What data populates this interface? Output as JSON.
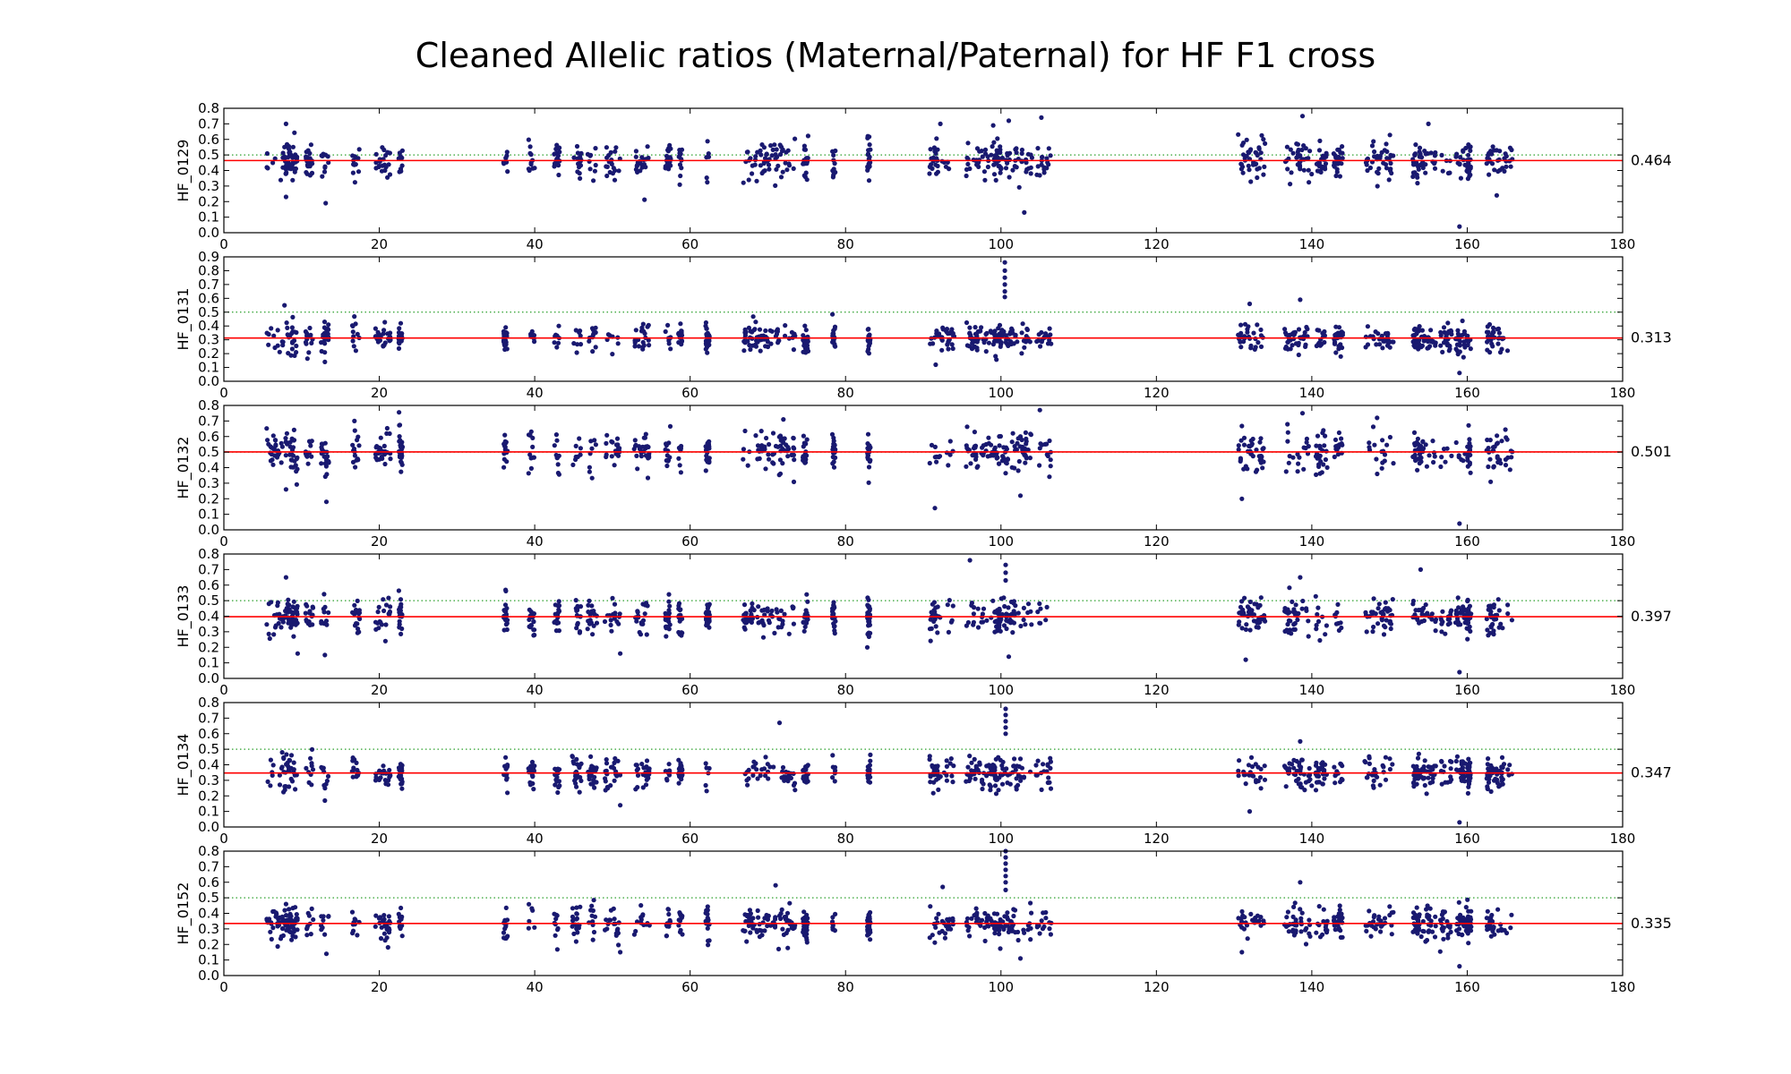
{
  "title": "Cleaned Allelic ratios (Maternal/Paternal) for HF F1 cross",
  "colors": {
    "points": "#191970",
    "mean_line": "#ff0000",
    "ref_line": "#2ca02c"
  },
  "chart_data": {
    "type": "scatter",
    "title": "Cleaned Allelic ratios (Maternal/Paternal) for HF F1 cross",
    "xlim": [
      0,
      180
    ],
    "xticks": [
      0,
      20,
      40,
      60,
      80,
      100,
      120,
      140,
      160,
      180
    ],
    "reference_line": 0.5,
    "marker_clusters": [
      [
        5.5,
        7.5
      ],
      [
        7.5,
        8.5
      ],
      [
        8.5,
        9.5
      ],
      [
        10.5,
        11.5
      ],
      [
        12.5,
        13.5
      ],
      [
        16.5,
        17.5
      ],
      [
        19.5,
        21.5
      ],
      [
        22.5,
        23
      ],
      [
        36,
        36.5
      ],
      [
        39.2,
        40
      ],
      [
        42.5,
        43.2
      ],
      [
        44.8,
        46
      ],
      [
        46.8,
        48
      ],
      [
        49,
        51
      ],
      [
        52.8,
        54.8
      ],
      [
        56.8,
        57.5
      ],
      [
        58.5,
        59
      ],
      [
        62,
        62.5
      ],
      [
        66.8,
        68.5
      ],
      [
        68.5,
        70
      ],
      [
        70,
        72
      ],
      [
        72,
        73.5
      ],
      [
        74.5,
        75.2
      ],
      [
        78.3,
        78.7
      ],
      [
        82.8,
        83.2
      ],
      [
        90.8,
        92
      ],
      [
        92,
        94
      ],
      [
        95.5,
        97
      ],
      [
        97,
        99
      ],
      [
        99,
        100
      ],
      [
        100,
        102
      ],
      [
        102,
        104
      ],
      [
        104.5,
        106.5
      ],
      [
        130.5,
        132
      ],
      [
        132,
        134
      ],
      [
        136.5,
        138
      ],
      [
        138,
        140
      ],
      [
        140.5,
        142
      ],
      [
        142.8,
        144
      ],
      [
        146.8,
        149
      ],
      [
        149,
        150.5
      ],
      [
        153,
        154
      ],
      [
        154,
        156
      ],
      [
        156.5,
        158
      ],
      [
        158.5,
        160
      ],
      [
        160,
        160.5
      ],
      [
        162.5,
        163.5
      ],
      [
        163.5,
        165.8
      ]
    ],
    "panels": [
      {
        "ylabel": "HF_0129",
        "mean": 0.464,
        "mean_label": "0.464",
        "ylim": [
          0,
          0.8
        ],
        "yticks": [
          "0.0",
          "0.1",
          "0.2",
          "0.3",
          "0.4",
          "0.5",
          "0.6",
          "0.7",
          "0.8"
        ],
        "spread": 0.06,
        "extremes": [
          [
            8,
            0.7
          ],
          [
            8,
            0.23
          ],
          [
            13.1,
            0.19
          ],
          [
            36,
            0.45
          ],
          [
            92.2,
            0.7
          ],
          [
            99,
            0.69
          ],
          [
            101,
            0.72
          ],
          [
            103,
            0.13
          ],
          [
            105.2,
            0.74
          ],
          [
            138.8,
            0.75
          ],
          [
            155,
            0.7
          ],
          [
            159,
            0.04
          ],
          [
            163.8,
            0.24
          ]
        ]
      },
      {
        "ylabel": "HF_0131",
        "mean": 0.313,
        "mean_label": "0.313",
        "ylim": [
          0,
          0.9
        ],
        "yticks": [
          "0.0",
          "0.1",
          "0.2",
          "0.3",
          "0.4",
          "0.5",
          "0.6",
          "0.7",
          "0.8",
          "0.9"
        ],
        "spread": 0.05,
        "extremes": [
          [
            7.8,
            0.55
          ],
          [
            13,
            0.14
          ],
          [
            91.6,
            0.12
          ],
          [
            100.5,
            0.86
          ],
          [
            100.5,
            0.8
          ],
          [
            100.5,
            0.75
          ],
          [
            100.5,
            0.7
          ],
          [
            100.5,
            0.65
          ],
          [
            100.5,
            0.61
          ],
          [
            132,
            0.56
          ],
          [
            138.5,
            0.59
          ],
          [
            159,
            0.06
          ]
        ]
      },
      {
        "ylabel": "HF_0132",
        "mean": 0.501,
        "mean_label": "0.501",
        "ylim": [
          0,
          0.8
        ],
        "yticks": [
          "0.0",
          "0.1",
          "0.2",
          "0.3",
          "0.4",
          "0.5",
          "0.6",
          "0.7",
          "0.8"
        ],
        "spread": 0.065,
        "extremes": [
          [
            8,
            0.26
          ],
          [
            13.2,
            0.18
          ],
          [
            16.8,
            0.7
          ],
          [
            72,
            0.71
          ],
          [
            91.5,
            0.14
          ],
          [
            105,
            0.77
          ],
          [
            102.5,
            0.22
          ],
          [
            131,
            0.2
          ],
          [
            138.8,
            0.75
          ],
          [
            148.4,
            0.72
          ],
          [
            159,
            0.04
          ]
        ]
      },
      {
        "ylabel": "HF_0133",
        "mean": 0.397,
        "mean_label": "0.397",
        "ylim": [
          0,
          0.8
        ],
        "yticks": [
          "0.0",
          "0.1",
          "0.2",
          "0.3",
          "0.4",
          "0.5",
          "0.6",
          "0.7",
          "0.8"
        ],
        "spread": 0.06,
        "extremes": [
          [
            8,
            0.65
          ],
          [
            9.5,
            0.16
          ],
          [
            13,
            0.15
          ],
          [
            51,
            0.16
          ],
          [
            82.8,
            0.2
          ],
          [
            96,
            0.76
          ],
          [
            100.6,
            0.73
          ],
          [
            100.6,
            0.68
          ],
          [
            100.6,
            0.63
          ],
          [
            101,
            0.14
          ],
          [
            131.5,
            0.12
          ],
          [
            138.5,
            0.65
          ],
          [
            154,
            0.7
          ],
          [
            159,
            0.04
          ]
        ]
      },
      {
        "ylabel": "HF_0134",
        "mean": 0.347,
        "mean_label": "0.347",
        "ylim": [
          0,
          0.8
        ],
        "yticks": [
          "0.0",
          "0.1",
          "0.2",
          "0.3",
          "0.4",
          "0.5",
          "0.6",
          "0.7",
          "0.8"
        ],
        "spread": 0.05,
        "extremes": [
          [
            7.5,
            0.48
          ],
          [
            13,
            0.17
          ],
          [
            51,
            0.14
          ],
          [
            71.5,
            0.67
          ],
          [
            100.6,
            0.76
          ],
          [
            100.6,
            0.72
          ],
          [
            100.6,
            0.68
          ],
          [
            100.6,
            0.64
          ],
          [
            100.6,
            0.6
          ],
          [
            132,
            0.1
          ],
          [
            138.5,
            0.55
          ],
          [
            159,
            0.03
          ]
        ]
      },
      {
        "ylabel": "HF_0152",
        "mean": 0.335,
        "mean_label": "0.335",
        "ylim": [
          0,
          0.8
        ],
        "yticks": [
          "0.0",
          "0.1",
          "0.2",
          "0.3",
          "0.4",
          "0.5",
          "0.6",
          "0.7",
          "0.8"
        ],
        "spread": 0.05,
        "extremes": [
          [
            8,
            0.46
          ],
          [
            13.2,
            0.14
          ],
          [
            51,
            0.15
          ],
          [
            71,
            0.58
          ],
          [
            92.5,
            0.57
          ],
          [
            100.6,
            0.8
          ],
          [
            100.6,
            0.76
          ],
          [
            100.6,
            0.72
          ],
          [
            100.6,
            0.68
          ],
          [
            100.6,
            0.64
          ],
          [
            100.6,
            0.6
          ],
          [
            100.6,
            0.55
          ],
          [
            102.5,
            0.11
          ],
          [
            131,
            0.15
          ],
          [
            138.5,
            0.6
          ],
          [
            159,
            0.06
          ]
        ]
      }
    ]
  }
}
